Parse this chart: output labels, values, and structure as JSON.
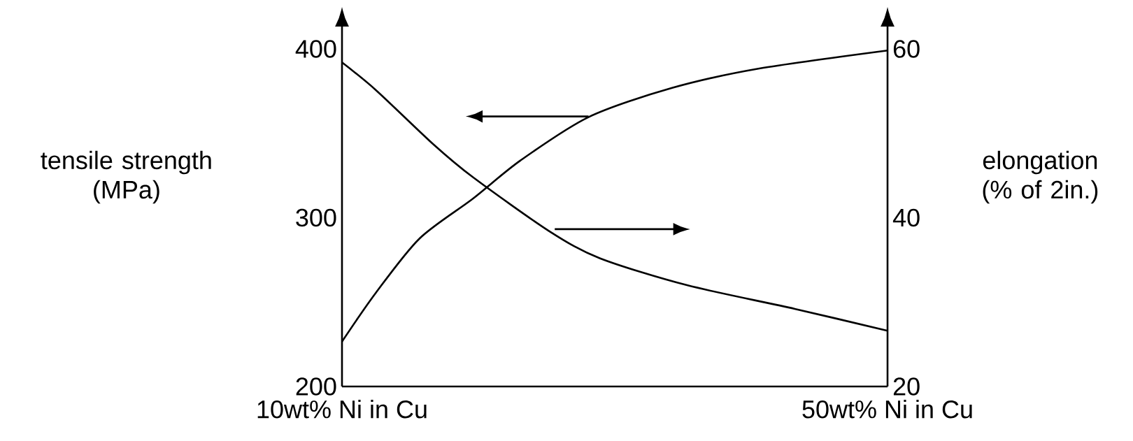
{
  "chart_data": {
    "type": "line",
    "ylabel": "tensile strength (MPa)",
    "y2label": "elongation (% of 2in.)",
    "xlim": [
      10,
      50
    ],
    "xticks": [
      {
        "value": 10,
        "label": "10wt% Ni in Cu"
      },
      {
        "value": 50,
        "label": "50wt% Ni in Cu"
      }
    ],
    "ylim": [
      200,
      400
    ],
    "yticks": [
      200,
      300,
      400
    ],
    "y2lim": [
      20,
      60
    ],
    "y2ticks": [
      20,
      40,
      60
    ],
    "series": [
      {
        "color": "#000000",
        "axis": "y",
        "x": [
          10,
          12.5,
          15.7,
          19.6,
          23.1,
          28.1,
          34.2,
          40.6,
          50
        ],
        "values": [
          226.6,
          255.7,
          287.8,
          311.3,
          334.0,
          359.7,
          376.9,
          388.4,
          399.1
        ]
      },
      {
        "color": "#000000",
        "axis": "y2",
        "x": [
          10,
          12.5,
          16.7,
          19.6,
          25.2,
          28.9,
          35.3,
          43.2,
          50
        ],
        "values": [
          58.4,
          55.1,
          48.7,
          44.8,
          38.4,
          35.2,
          32.0,
          29.2,
          26.6
        ]
      }
    ]
  }
}
